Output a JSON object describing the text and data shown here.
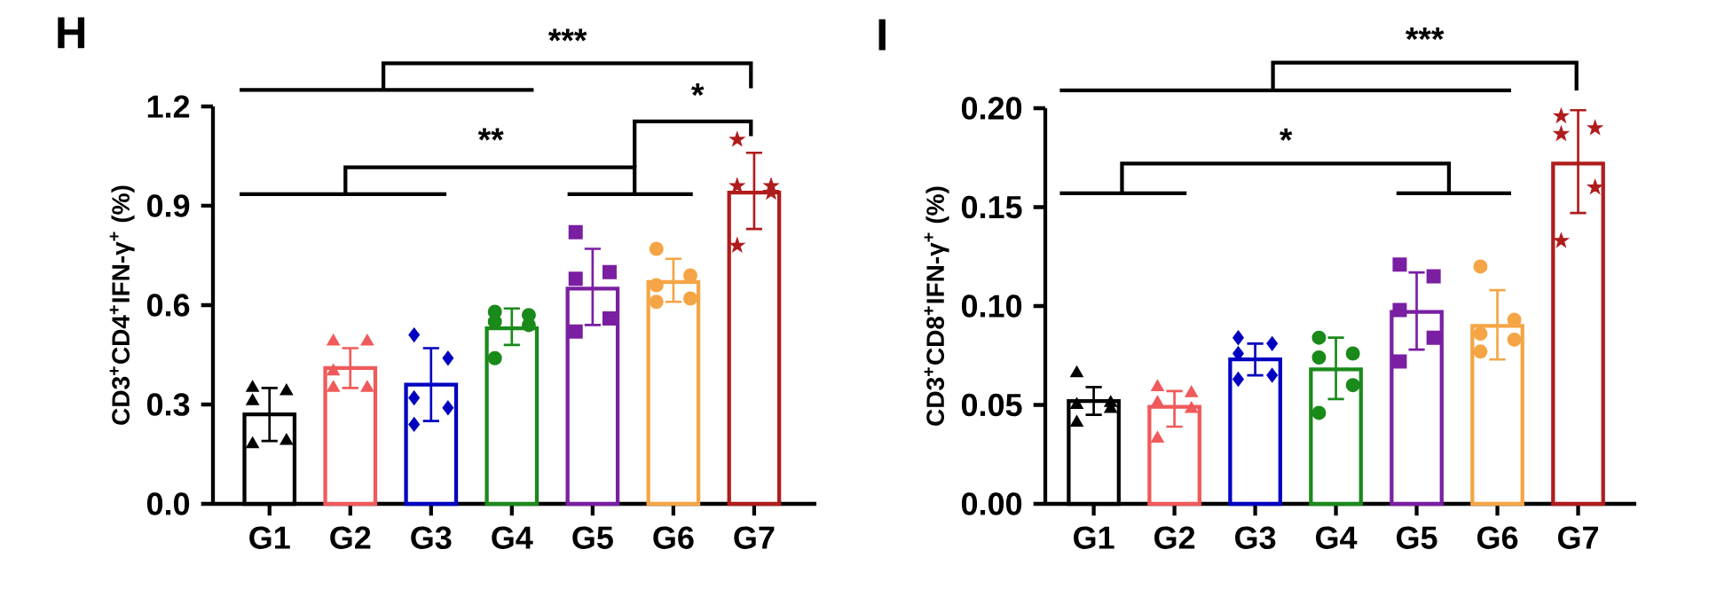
{
  "chart_data": [
    {
      "type": "bar",
      "title": "H",
      "ylabel": "CD3$^{+}$CD4$^{+}$IFN-γ$^{+}$ (%)",
      "categories": [
        "G1",
        "G2",
        "G3",
        "G4",
        "G5",
        "G6",
        "G7"
      ],
      "values": [
        0.27,
        0.41,
        0.36,
        0.53,
        0.65,
        0.67,
        0.94
      ],
      "colors": [
        "#000000",
        "#f05a5a",
        "#0000c0",
        "#1a8a1a",
        "#7a1fa2",
        "#f5a545",
        "#b01c1c"
      ],
      "errors": [
        [
          0.19,
          0.35
        ],
        [
          0.35,
          0.47
        ],
        [
          0.25,
          0.47
        ],
        [
          0.48,
          0.59
        ],
        [
          0.54,
          0.77
        ],
        [
          0.61,
          0.74
        ],
        [
          0.83,
          1.06
        ]
      ],
      "ylim": [
        0,
        1.2
      ],
      "yticks": [
        {
          "value": 0,
          "label": "0.0"
        },
        0.3,
        0.6,
        0.9,
        1.2
      ],
      "annotations": [
        "***",
        "*",
        "**"
      ],
      "series": [
        {
          "type": "scatter",
          "color": "#000000",
          "marker": "triangle",
          "x": [
            "G1",
            "G1",
            "G1",
            "G1",
            "G1"
          ],
          "values": [
            0.35,
            0.34,
            0.31,
            0.19,
            0.18
          ]
        },
        {
          "type": "scatter",
          "color": "#f05a5a",
          "marker": "triangle",
          "x": [
            "G2",
            "G2",
            "G2",
            "G2",
            "G2"
          ],
          "values": [
            0.49,
            0.49,
            0.4,
            0.35,
            0.35
          ]
        },
        {
          "type": "scatter",
          "color": "#0000c0",
          "marker": "diamond",
          "x": [
            "G3",
            "G3",
            "G3",
            "G3",
            "G3"
          ],
          "values": [
            0.51,
            0.44,
            0.32,
            0.29,
            0.24
          ]
        },
        {
          "type": "scatter",
          "color": "#1a8a1a",
          "marker": "circle",
          "x": [
            "G4",
            "G4",
            "G4",
            "G4",
            "G4"
          ],
          "values": [
            0.58,
            0.57,
            0.55,
            0.54,
            0.44
          ]
        },
        {
          "type": "scatter",
          "color": "#7a1fa2",
          "marker": "square",
          "x": [
            "G5",
            "G5",
            "G5",
            "G5",
            "G5"
          ],
          "values": [
            0.82,
            0.7,
            0.68,
            0.56,
            0.52
          ]
        },
        {
          "type": "scatter",
          "color": "#f5a545",
          "marker": "circle",
          "x": [
            "G6",
            "G6",
            "G6",
            "G6",
            "G6"
          ],
          "values": [
            0.77,
            0.69,
            0.66,
            0.62,
            0.61
          ]
        },
        {
          "type": "scatter",
          "color": "#b01c1c",
          "marker": "star",
          "x": [
            "G7",
            "G7",
            "G7",
            "G7",
            "G7"
          ],
          "values": [
            1.1,
            0.96,
            0.96,
            0.94,
            0.78
          ]
        }
      ]
    },
    {
      "type": "bar",
      "title": "I",
      "ylabel": "CD3$^{+}$CD8$^{+}$IFN-γ$^{+}$ (%)",
      "categories": [
        "G1",
        "G2",
        "G3",
        "G4",
        "G5",
        "G6",
        "G7"
      ],
      "values": [
        0.052,
        0.049,
        0.073,
        0.068,
        0.097,
        0.09,
        0.172
      ],
      "colors": [
        "#000000",
        "#f05a5a",
        "#0000c0",
        "#1a8a1a",
        "#7a1fa2",
        "#f5a545",
        "#b01c1c"
      ],
      "errors": [
        [
          0.045,
          0.059
        ],
        [
          0.039,
          0.057
        ],
        [
          0.065,
          0.081
        ],
        [
          0.053,
          0.084
        ],
        [
          0.078,
          0.117
        ],
        [
          0.073,
          0.108
        ],
        [
          0.147,
          0.199
        ]
      ],
      "ylim": [
        0,
        0.2
      ],
      "yticks": [
        {
          "value": 0,
          "label": "0.00"
        },
        0.05,
        {
          "value": 0.1,
          "label": "0.10"
        },
        0.15,
        {
          "value": 0.2,
          "label": "0.20"
        }
      ],
      "annotations": [
        "***",
        "*"
      ],
      "series": [
        {
          "type": "scatter",
          "color": "#000000",
          "marker": "triangle",
          "x": [
            "G1",
            "G1",
            "G1",
            "G1",
            "G1"
          ],
          "values": [
            0.066,
            0.051,
            0.05,
            0.048,
            0.041
          ]
        },
        {
          "type": "scatter",
          "color": "#f05a5a",
          "marker": "triangle",
          "x": [
            "G2",
            "G2",
            "G2",
            "G2",
            "G2"
          ],
          "values": [
            0.059,
            0.056,
            0.051,
            0.048,
            0.033
          ]
        },
        {
          "type": "scatter",
          "color": "#0000c0",
          "marker": "diamond",
          "x": [
            "G3",
            "G3",
            "G3",
            "G3",
            "G3"
          ],
          "values": [
            0.084,
            0.081,
            0.076,
            0.065,
            0.063
          ]
        },
        {
          "type": "scatter",
          "color": "#1a8a1a",
          "marker": "circle",
          "x": [
            "G4",
            "G4",
            "G4",
            "G4",
            "G4"
          ],
          "values": [
            0.084,
            0.076,
            0.074,
            0.06,
            0.046
          ]
        },
        {
          "type": "scatter",
          "color": "#7a1fa2",
          "marker": "square",
          "x": [
            "G5",
            "G5",
            "G5",
            "G5",
            "G5"
          ],
          "values": [
            0.121,
            0.115,
            0.098,
            0.084,
            0.072
          ]
        },
        {
          "type": "scatter",
          "color": "#f5a545",
          "marker": "circle",
          "x": [
            "G6",
            "G6",
            "G6",
            "G6",
            "G6"
          ],
          "values": [
            0.12,
            0.093,
            0.086,
            0.083,
            0.077
          ]
        },
        {
          "type": "scatter",
          "color": "#b01c1c",
          "marker": "star",
          "x": [
            "G7",
            "G7",
            "G7",
            "G7",
            "G7"
          ],
          "values": [
            0.196,
            0.19,
            0.187,
            0.16,
            0.133
          ]
        }
      ]
    }
  ]
}
